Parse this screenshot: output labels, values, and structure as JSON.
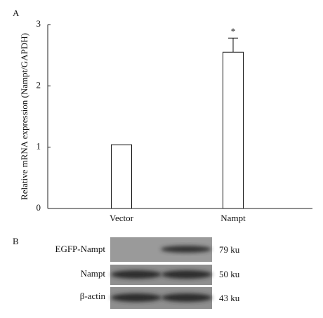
{
  "chart_data": {
    "type": "bar",
    "panel_label": "A",
    "ylabel": "Relative mRNA expression (Nampt/GAPDH)",
    "categories": [
      "Vector",
      "Nampt"
    ],
    "values": [
      1.04,
      2.55
    ],
    "errors": [
      null,
      0.23
    ],
    "annotations": [
      null,
      "*"
    ],
    "color": "#ffffff",
    "ylim": [
      0,
      3
    ],
    "yticks": [
      0,
      1,
      2,
      3
    ]
  },
  "blot": {
    "panel_label": "B",
    "rows": [
      {
        "label": "EGFP-Nampt",
        "size": "79 ku"
      },
      {
        "label": "Nampt",
        "size": "50 ku"
      },
      {
        "label": "β-actin",
        "size": "43 ku"
      }
    ]
  }
}
